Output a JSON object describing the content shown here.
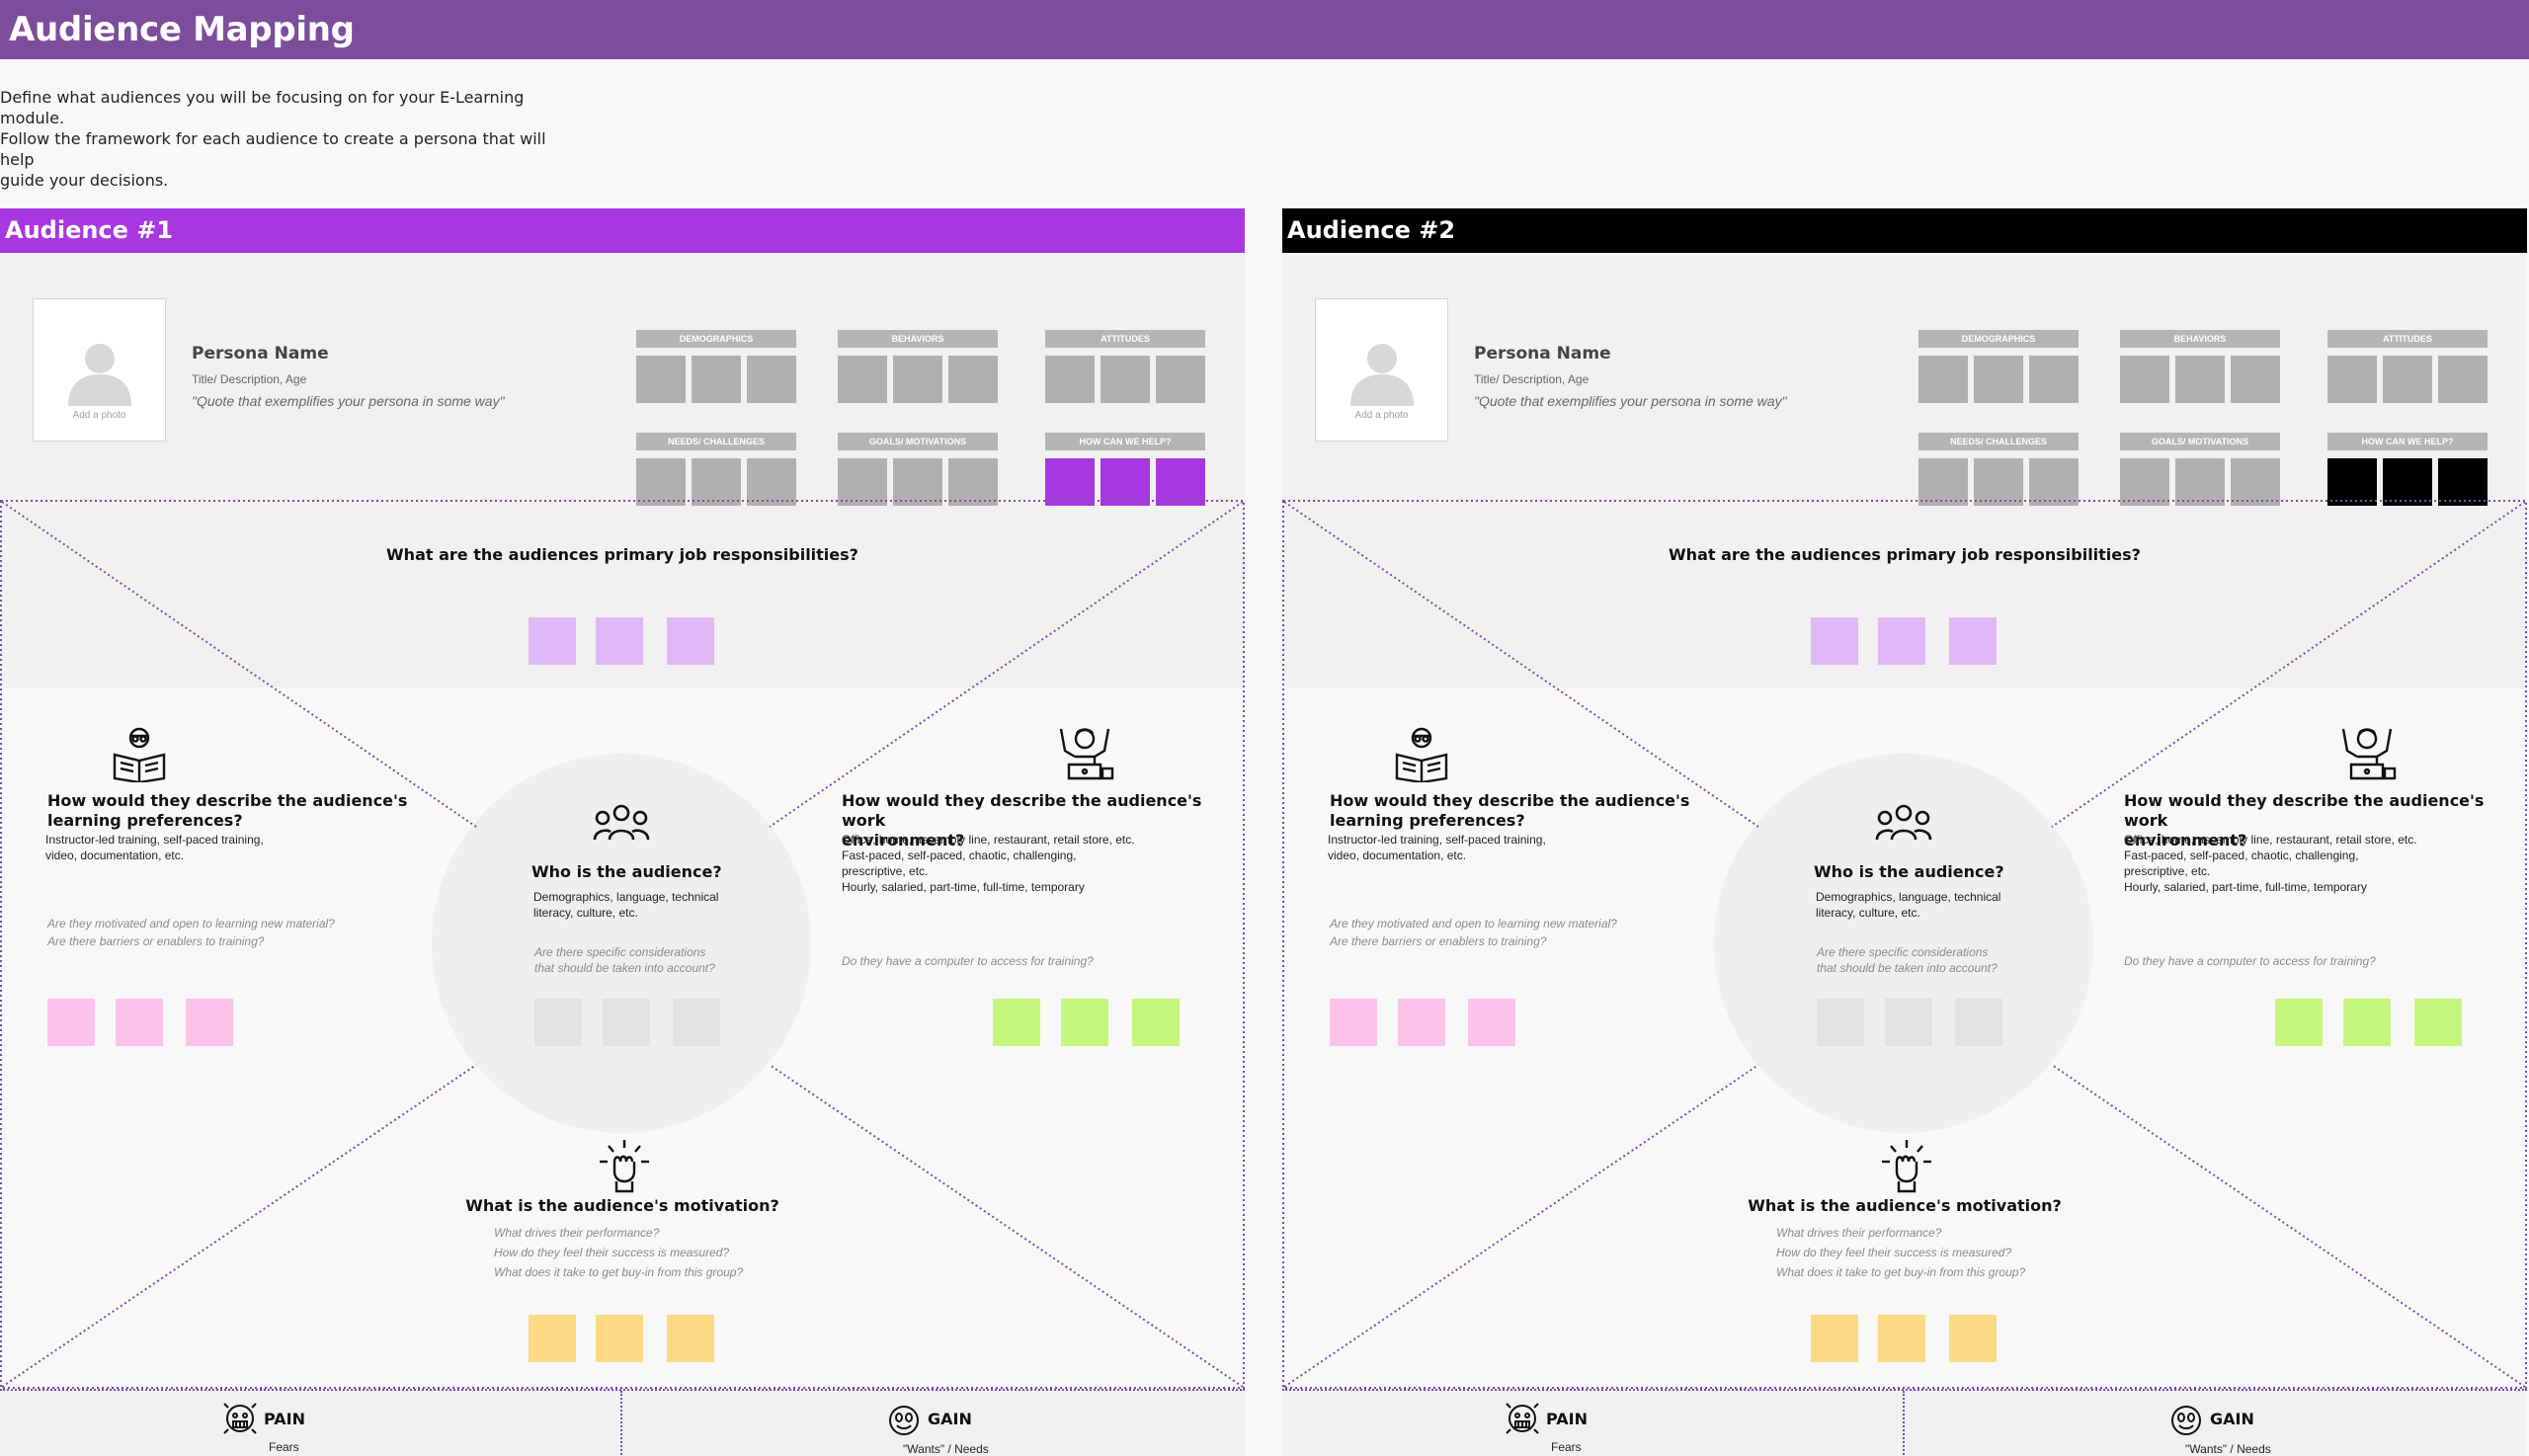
{
  "page": {
    "title": "Audience Mapping",
    "intro_lines": [
      "Define what audiences you will be focusing on for your E-Learning module.",
      "Follow the framework for each audience to create a persona that will help",
      "guide your decisions."
    ]
  },
  "audiences": [
    {
      "label": "Audience #1",
      "header_color": "#a737e0",
      "help_color": "#a737e0",
      "persona": {
        "photo_caption": "Add a photo",
        "name": "Persona Name",
        "title": "Title/ Description, Age",
        "quote": "\"Quote that exemplifies your persona in some way\""
      },
      "attributes": [
        "DEMOGRAPHICS",
        "BEHAVIORS",
        "ATTITUDES",
        "NEEDS/ CHALLENGES",
        "GOALS/ MOTIVATIONS",
        "HOW CAN WE HELP?"
      ]
    },
    {
      "label": "Audience #2",
      "header_color": "#000000",
      "help_color": "#000000",
      "persona": {
        "photo_caption": "Add a photo",
        "name": "Persona Name",
        "title": "Title/ Description, Age",
        "quote": "\"Quote that exemplifies your persona in some way\""
      },
      "attributes": [
        "DEMOGRAPHICS",
        "BEHAVIORS",
        "ATTITUDES",
        "NEEDS/ CHALLENGES",
        "GOALS/ MOTIVATIONS",
        "HOW CAN WE HELP?"
      ]
    }
  ],
  "framework": {
    "responsibilities": {
      "question": "What are the audiences primary job responsibilities?"
    },
    "learning": {
      "question_lines": [
        "How would they describe the audience's",
        "learning preferences?"
      ],
      "desc_lines": [
        "Instructor-led training, self-paced training,",
        "video, documentation, etc."
      ],
      "hint_lines": [
        "Are they motivated and open to learning new material?",
        "Are there barriers or enablers to training?"
      ]
    },
    "who": {
      "question": "Who is the audience?",
      "desc_lines": [
        "Demographics, language, technical",
        "literacy, culture, etc."
      ],
      "hint_lines": [
        "Are there specific considerations",
        "that should be taken into account?"
      ]
    },
    "work": {
      "question_lines": [
        "How would they describe the audience's work",
        "environment?"
      ],
      "desc_lines": [
        "Office, home, assembly line, restaurant, retail store, etc.",
        "Fast-paced, self-paced, chaotic, challenging,",
        "prescriptive, etc.",
        "Hourly, salaried, part-time, full-time, temporary"
      ],
      "hint": "Do they have a computer to access for training?"
    },
    "motivation": {
      "question": "What is the audience's motivation?",
      "hint_lines": [
        "What drives their performance?",
        "How do they feel their success is measured?",
        "What does it take to get buy-in from this group?"
      ]
    },
    "pain": {
      "label": "PAIN",
      "sub": "Fears"
    },
    "gain": {
      "label": "GAIN",
      "sub": "\"Wants\" / Needs"
    }
  },
  "colors": {
    "top_bar": "#7d4d9c",
    "sticky_purple": "#e0b8f7",
    "sticky_pink": "#fdc2ea",
    "sticky_grey": "#e3e3e3",
    "sticky_green": "#c5f77f",
    "sticky_yellow": "#fbd985",
    "attribute_square": "#b0b0b0",
    "dotted_line": "#7a4da8"
  },
  "icons": {
    "photo": "person-silhouette-icon",
    "learning": "reader-icon",
    "work": "worker-laptop-icon",
    "who": "group-icon",
    "motivation": "raised-fist-icon",
    "pain": "worried-face-icon",
    "gain": "smiling-face-icon"
  }
}
